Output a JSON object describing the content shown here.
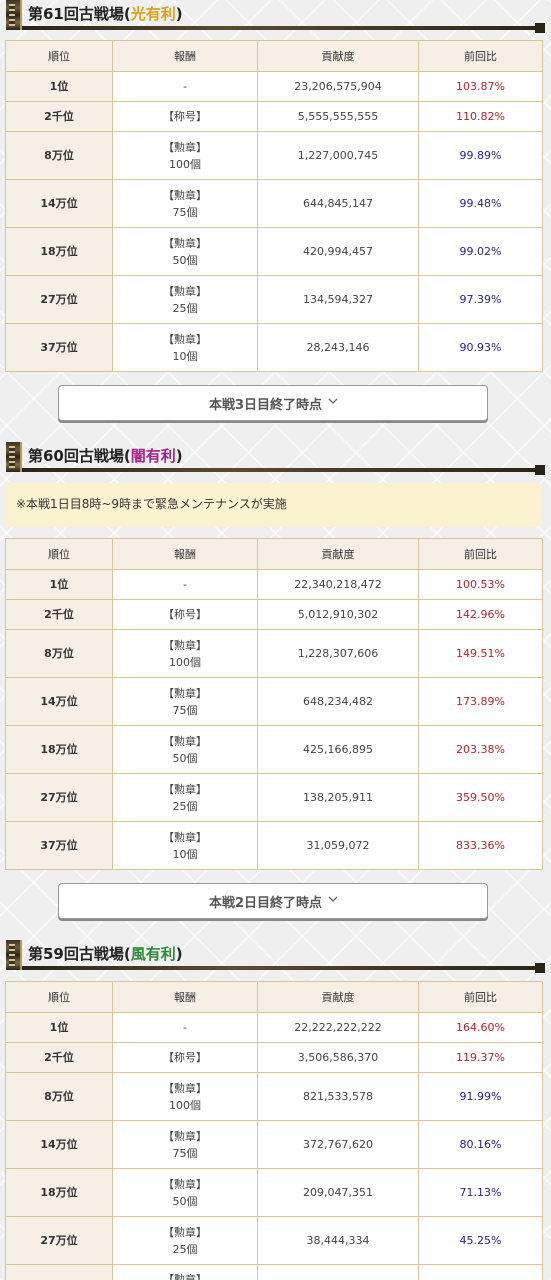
{
  "sections": [
    {
      "title_prefix": "第61回古戦場(",
      "attr": "光有利",
      "attr_color": "#d9a21a",
      "title_suffix": ")",
      "headers": [
        "順位",
        "報酬",
        "貢献度",
        "前回比"
      ],
      "rows": [
        {
          "rank": "1位",
          "reward1": "-",
          "reward2": "",
          "score": "23,206,575,904",
          "ratio": "103.87%",
          "trend": "up"
        },
        {
          "rank": "2千位",
          "reward1": "【称号】",
          "reward2": "",
          "score": "5,555,555,555",
          "ratio": "110.82%",
          "trend": "up"
        },
        {
          "rank": "8万位",
          "reward1": "【勲章】",
          "reward2": "100個",
          "score": "1,227,000,745",
          "ratio": "99.89%",
          "trend": "down"
        },
        {
          "rank": "14万位",
          "reward1": "【勲章】",
          "reward2": "75個",
          "score": "644,845,147",
          "ratio": "99.48%",
          "trend": "down"
        },
        {
          "rank": "18万位",
          "reward1": "【勲章】",
          "reward2": "50個",
          "score": "420,994,457",
          "ratio": "99.02%",
          "trend": "down"
        },
        {
          "rank": "27万位",
          "reward1": "【勲章】",
          "reward2": "25個",
          "score": "134,594,327",
          "ratio": "97.39%",
          "trend": "down"
        },
        {
          "rank": "37万位",
          "reward1": "【勲章】",
          "reward2": "10個",
          "score": "28,243,146",
          "ratio": "90.93%",
          "trend": "down"
        }
      ],
      "button_label": "本戦3日目終了時点"
    },
    {
      "title_prefix": "第60回古戦場(",
      "attr": "闇有利",
      "attr_color": "#a3238c",
      "title_suffix": ")",
      "note": "※本戦1日目8時~9時まで緊急メンテナンスが実施",
      "headers": [
        "順位",
        "報酬",
        "貢献度",
        "前回比"
      ],
      "rows": [
        {
          "rank": "1位",
          "reward1": "-",
          "reward2": "",
          "score": "22,340,218,472",
          "ratio": "100.53%",
          "trend": "up"
        },
        {
          "rank": "2千位",
          "reward1": "【称号】",
          "reward2": "",
          "score": "5,012,910,302",
          "ratio": "142.96%",
          "trend": "up"
        },
        {
          "rank": "8万位",
          "reward1": "【勲章】",
          "reward2": "100個",
          "score": "1,228,307,606",
          "ratio": "149.51%",
          "trend": "up"
        },
        {
          "rank": "14万位",
          "reward1": "【勲章】",
          "reward2": "75個",
          "score": "648,234,482",
          "ratio": "173.89%",
          "trend": "up"
        },
        {
          "rank": "18万位",
          "reward1": "【勲章】",
          "reward2": "50個",
          "score": "425,166,895",
          "ratio": "203.38%",
          "trend": "up"
        },
        {
          "rank": "27万位",
          "reward1": "【勲章】",
          "reward2": "25個",
          "score": "138,205,911",
          "ratio": "359.50%",
          "trend": "up"
        },
        {
          "rank": "37万位",
          "reward1": "【勲章】",
          "reward2": "10個",
          "score": "31,059,072",
          "ratio": "833.36%",
          "trend": "up"
        }
      ],
      "button_label": "本戦2日目終了時点"
    },
    {
      "title_prefix": "第59回古戦場(",
      "attr": "風有利",
      "attr_color": "#2e8b3a",
      "title_suffix": ")",
      "headers": [
        "順位",
        "報酬",
        "貢献度",
        "前回比"
      ],
      "rows": [
        {
          "rank": "1位",
          "reward1": "-",
          "reward2": "",
          "score": "22,222,222,222",
          "ratio": "164.60%",
          "trend": "up"
        },
        {
          "rank": "2千位",
          "reward1": "【称号】",
          "reward2": "",
          "score": "3,506,586,370",
          "ratio": "119.37%",
          "trend": "up"
        },
        {
          "rank": "8万位",
          "reward1": "【勲章】",
          "reward2": "100個",
          "score": "821,533,578",
          "ratio": "91.99%",
          "trend": "down"
        },
        {
          "rank": "14万位",
          "reward1": "【勲章】",
          "reward2": "75個",
          "score": "372,767,620",
          "ratio": "80.16%",
          "trend": "down"
        },
        {
          "rank": "18万位",
          "reward1": "【勲章】",
          "reward2": "50個",
          "score": "209,047,351",
          "ratio": "71.13%",
          "trend": "down"
        },
        {
          "rank": "27万位",
          "reward1": "【勲章】",
          "reward2": "25個",
          "score": "38,444,334",
          "ratio": "45.25%",
          "trend": "down"
        },
        {
          "rank": "",
          "reward1": "【勲章】",
          "reward2": "",
          "score": "",
          "ratio": "",
          "trend": "down"
        }
      ]
    }
  ]
}
